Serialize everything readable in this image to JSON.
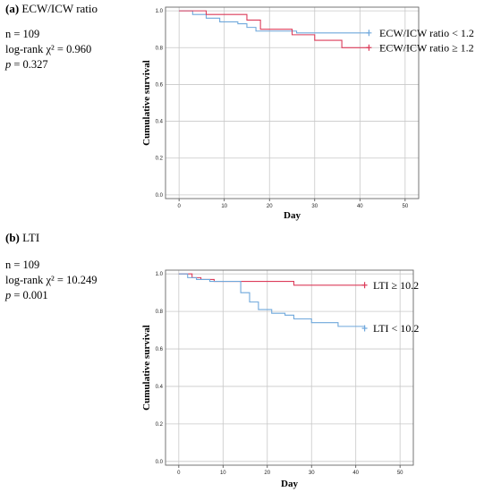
{
  "panels": [
    {
      "label_letter": "(a)",
      "label_text": "ECW/ICW ratio",
      "stats": {
        "n": "n = 109",
        "logrank": "log-rank χ² = 0.960",
        "p_symbol": "p",
        "p_value": "= 0.327"
      }
    },
    {
      "label_letter": "(b)",
      "label_text": "LTI",
      "stats": {
        "n": "n = 109",
        "logrank": "log-rank χ² = 10.249",
        "p_symbol": "p",
        "p_value": "= 0.001"
      }
    }
  ],
  "chart_data": [
    {
      "type": "line",
      "xlabel": "Day",
      "ylabel": "Cumulative survival",
      "xlim": [
        -3,
        53
      ],
      "ylim": [
        -0.02,
        1.02
      ],
      "x_ticks": [
        0,
        10,
        20,
        30,
        40,
        50
      ],
      "x_tick_labels": [
        "0",
        "10",
        "20",
        "30",
        "40",
        "50"
      ],
      "y_ticks": [
        0.0,
        0.2,
        0.4,
        0.6,
        0.8,
        1.0
      ],
      "y_tick_labels": [
        "0.0",
        "0.2",
        "0.4",
        "0.6",
        "0.8",
        "1.0"
      ],
      "grid": true,
      "legend": "right",
      "series": [
        {
          "name": "ECW/ICW ratio < 1.2",
          "color": "#6fa8dc",
          "steps": [
            [
              0,
              1.0
            ],
            [
              3,
              0.98
            ],
            [
              6,
              0.96
            ],
            [
              9,
              0.94
            ],
            [
              13,
              0.93
            ],
            [
              15,
              0.91
            ],
            [
              17,
              0.89
            ],
            [
              26,
              0.88
            ],
            [
              42,
              0.88
            ]
          ],
          "censor": [
            42,
            0.88
          ]
        },
        {
          "name": "ECW/ICW ratio ≥ 1.2",
          "color": "#dc3c5a",
          "steps": [
            [
              0,
              1.0
            ],
            [
              6,
              0.98
            ],
            [
              15,
              0.95
            ],
            [
              18,
              0.9
            ],
            [
              25,
              0.87
            ],
            [
              30,
              0.84
            ],
            [
              36,
              0.8
            ],
            [
              42,
              0.8
            ]
          ],
          "censor": [
            42,
            0.8
          ]
        }
      ]
    },
    {
      "type": "line",
      "xlabel": "Day",
      "ylabel": "Cumulative survival",
      "xlim": [
        -3,
        53
      ],
      "ylim": [
        -0.02,
        1.02
      ],
      "x_ticks": [
        0,
        10,
        20,
        30,
        40,
        50
      ],
      "x_tick_labels": [
        "0",
        "10",
        "20",
        "30",
        "40",
        "50"
      ],
      "y_ticks": [
        0.0,
        0.2,
        0.4,
        0.6,
        0.8,
        1.0
      ],
      "y_tick_labels": [
        "0.0",
        "0.2",
        "0.4",
        "0.6",
        "0.8",
        "1.0"
      ],
      "grid": true,
      "legend": "right",
      "series": [
        {
          "name": "LTI ≥ 10.2",
          "color": "#dc3c5a",
          "steps": [
            [
              0,
              1.0
            ],
            [
              3,
              0.98
            ],
            [
              5,
              0.97
            ],
            [
              8,
              0.96
            ],
            [
              26,
              0.94
            ],
            [
              42,
              0.94
            ]
          ],
          "censor": [
            42,
            0.94
          ]
        },
        {
          "name": "LTI < 10.2",
          "color": "#6fa8dc",
          "steps": [
            [
              0,
              1.0
            ],
            [
              2,
              0.98
            ],
            [
              4,
              0.97
            ],
            [
              7,
              0.96
            ],
            [
              14,
              0.9
            ],
            [
              16,
              0.85
            ],
            [
              18,
              0.81
            ],
            [
              21,
              0.79
            ],
            [
              24,
              0.78
            ],
            [
              26,
              0.76
            ],
            [
              30,
              0.74
            ],
            [
              36,
              0.72
            ],
            [
              42,
              0.71
            ]
          ],
          "censor": [
            42,
            0.71
          ]
        }
      ]
    }
  ]
}
